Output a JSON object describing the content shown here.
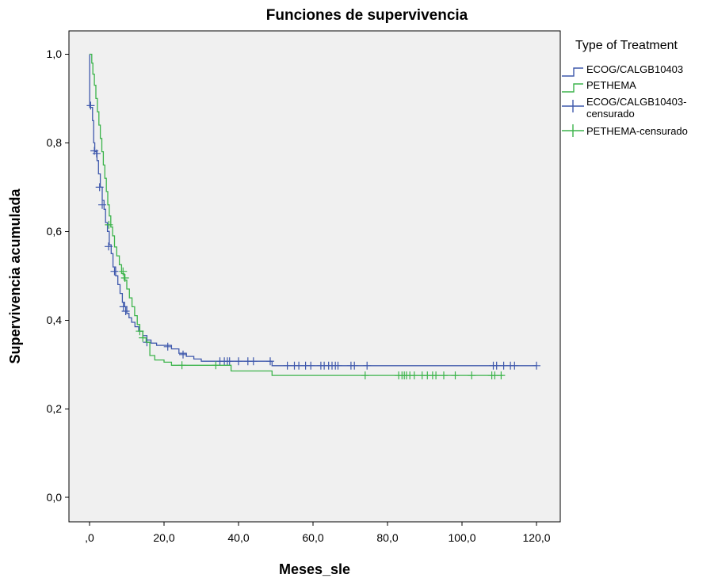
{
  "chart_data": {
    "type": "line",
    "title": "Funciones de supervivencia",
    "xlabel": "Meses_sle",
    "ylabel": "Supervivencia acumulada",
    "xlim": [
      -4,
      126
    ],
    "ylim": [
      -0.06,
      1.06
    ],
    "x_ticks": [
      0,
      20,
      40,
      60,
      80,
      100,
      120
    ],
    "x_tick_labels": [
      ",0",
      "20,0",
      "40,0",
      "60,0",
      "80,0",
      "100,0",
      "120,0"
    ],
    "y_ticks": [
      0,
      0.2,
      0.4,
      0.6,
      0.8,
      1.0
    ],
    "y_tick_labels": [
      "0,0",
      "0,2",
      "0,4",
      "0,6",
      "0,8",
      "1,0"
    ],
    "grid": false,
    "legend": {
      "title": "Type of Treatment",
      "placement": "right",
      "entries": [
        {
          "label": "ECOG/CALGB10403",
          "kind": "line",
          "series": 0
        },
        {
          "label": "PETHEMA",
          "kind": "line",
          "series": 1
        },
        {
          "label": "ECOG/CALGB10403-censurado",
          "label_lines": [
            "ECOG/CALGB10403-",
            "censurado"
          ],
          "kind": "censor",
          "series": 0
        },
        {
          "label": "PETHEMA-censurado",
          "kind": "censor",
          "series": 1
        }
      ]
    },
    "series": [
      {
        "name": "ECOG/CALGB10403",
        "color": "#3e58ac",
        "steps": [
          [
            0,
            1.0
          ],
          [
            0.05,
            0.88
          ],
          [
            0.8,
            0.85
          ],
          [
            1.1,
            0.8
          ],
          [
            1.4,
            0.78
          ],
          [
            2.0,
            0.76
          ],
          [
            2.4,
            0.73
          ],
          [
            2.9,
            0.7
          ],
          [
            3.4,
            0.67
          ],
          [
            3.9,
            0.65
          ],
          [
            4.3,
            0.62
          ],
          [
            4.8,
            0.6
          ],
          [
            5.3,
            0.57
          ],
          [
            5.8,
            0.55
          ],
          [
            6.3,
            0.52
          ],
          [
            7.0,
            0.5
          ],
          [
            7.6,
            0.48
          ],
          [
            8.2,
            0.46
          ],
          [
            8.8,
            0.44
          ],
          [
            9.4,
            0.43
          ],
          [
            10.0,
            0.415
          ],
          [
            10.6,
            0.405
          ],
          [
            11.3,
            0.395
          ],
          [
            12.2,
            0.385
          ],
          [
            13.2,
            0.375
          ],
          [
            14.3,
            0.365
          ],
          [
            15.4,
            0.355
          ],
          [
            16.5,
            0.348
          ],
          [
            18.0,
            0.343
          ],
          [
            22.0,
            0.335
          ],
          [
            24.0,
            0.325
          ],
          [
            26.0,
            0.318
          ],
          [
            28.0,
            0.312
          ],
          [
            30.0,
            0.307
          ],
          [
            49.0,
            0.297
          ],
          [
            120.0,
            0.297
          ]
        ],
        "censored": [
          [
            0.3,
            0.884
          ],
          [
            1.3,
            0.782
          ],
          [
            1.9,
            0.776
          ],
          [
            2.7,
            0.7
          ],
          [
            3.4,
            0.66
          ],
          [
            5.1,
            0.566
          ],
          [
            6.7,
            0.51
          ],
          [
            9.1,
            0.43
          ],
          [
            9.7,
            0.42
          ],
          [
            15.4,
            0.35
          ],
          [
            21.0,
            0.34
          ],
          [
            25.1,
            0.322
          ],
          [
            35.0,
            0.307
          ],
          [
            36.2,
            0.307
          ],
          [
            37.0,
            0.307
          ],
          [
            37.6,
            0.307
          ],
          [
            40.0,
            0.307
          ],
          [
            42.5,
            0.307
          ],
          [
            44.0,
            0.307
          ],
          [
            48.5,
            0.307
          ],
          [
            53.1,
            0.297
          ],
          [
            55.0,
            0.297
          ],
          [
            56.2,
            0.297
          ],
          [
            58.0,
            0.297
          ],
          [
            59.4,
            0.297
          ],
          [
            62.1,
            0.297
          ],
          [
            63.0,
            0.297
          ],
          [
            64.2,
            0.297
          ],
          [
            65.1,
            0.297
          ],
          [
            66.0,
            0.297
          ],
          [
            66.7,
            0.297
          ],
          [
            70.2,
            0.297
          ],
          [
            71.1,
            0.297
          ],
          [
            74.5,
            0.297
          ],
          [
            108.4,
            0.297
          ],
          [
            109.3,
            0.297
          ],
          [
            111.2,
            0.297
          ],
          [
            113.0,
            0.297
          ],
          [
            114.1,
            0.297
          ],
          [
            120.0,
            0.297
          ]
        ]
      },
      {
        "name": "PETHEMA",
        "color": "#3cb44b",
        "steps": [
          [
            0,
            1.0
          ],
          [
            0.6,
            0.98
          ],
          [
            0.9,
            0.955
          ],
          [
            1.3,
            0.93
          ],
          [
            1.7,
            0.9
          ],
          [
            2.1,
            0.87
          ],
          [
            2.5,
            0.84
          ],
          [
            2.9,
            0.81
          ],
          [
            3.3,
            0.78
          ],
          [
            3.7,
            0.75
          ],
          [
            4.1,
            0.72
          ],
          [
            4.5,
            0.69
          ],
          [
            4.9,
            0.66
          ],
          [
            5.3,
            0.635
          ],
          [
            5.7,
            0.61
          ],
          [
            6.2,
            0.59
          ],
          [
            6.7,
            0.565
          ],
          [
            7.3,
            0.545
          ],
          [
            8.0,
            0.525
          ],
          [
            8.6,
            0.505
          ],
          [
            9.3,
            0.49
          ],
          [
            10.0,
            0.47
          ],
          [
            10.7,
            0.45
          ],
          [
            11.4,
            0.43
          ],
          [
            12.1,
            0.41
          ],
          [
            12.8,
            0.39
          ],
          [
            13.5,
            0.375
          ],
          [
            14.3,
            0.36
          ],
          [
            15.2,
            0.35
          ],
          [
            16.2,
            0.32
          ],
          [
            17.5,
            0.31
          ],
          [
            20.0,
            0.305
          ],
          [
            22.0,
            0.298
          ],
          [
            38.0,
            0.285
          ],
          [
            49.0,
            0.275
          ],
          [
            111.0,
            0.275
          ]
        ],
        "censored": [
          [
            5.2,
            0.615
          ],
          [
            9.0,
            0.51
          ],
          [
            9.5,
            0.495
          ],
          [
            13.5,
            0.375
          ],
          [
            14.3,
            0.36
          ],
          [
            24.8,
            0.298
          ],
          [
            33.9,
            0.298
          ],
          [
            74.0,
            0.275
          ],
          [
            83.0,
            0.275
          ],
          [
            83.9,
            0.275
          ],
          [
            84.5,
            0.275
          ],
          [
            85.1,
            0.275
          ],
          [
            86.0,
            0.275
          ],
          [
            87.2,
            0.275
          ],
          [
            89.3,
            0.275
          ],
          [
            90.7,
            0.275
          ],
          [
            92.1,
            0.275
          ],
          [
            93.0,
            0.275
          ],
          [
            95.1,
            0.275
          ],
          [
            98.2,
            0.275
          ],
          [
            102.6,
            0.275
          ],
          [
            108.0,
            0.275
          ],
          [
            108.8,
            0.275
          ],
          [
            110.5,
            0.275
          ]
        ]
      }
    ]
  }
}
